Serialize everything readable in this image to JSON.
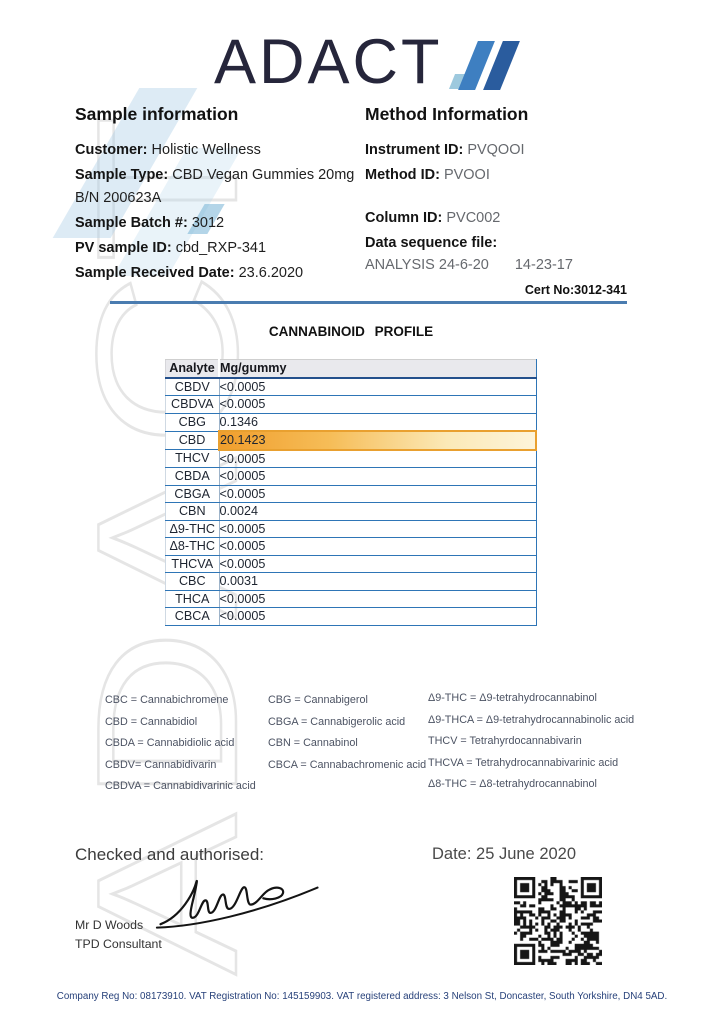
{
  "logo": {
    "text": "ADACT"
  },
  "icons": {
    "logo_mark": "adact-diagonal-bars",
    "signature": "handwritten-signature",
    "qr": "qr-code"
  },
  "sample_info": {
    "title": "Sample information",
    "fields": [
      {
        "label": "Customer:",
        "value": "Holistic Wellness"
      },
      {
        "label": "Sample Type:",
        "value": "CBD Vegan Gummies 20mg B/N 200623A"
      },
      {
        "label": "Sample Batch #:",
        "value": "3012"
      },
      {
        "label": "PV sample ID:",
        "value": "cbd_RXP-341"
      },
      {
        "label": "Sample Received Date:",
        "value": "23.6.2020"
      }
    ]
  },
  "method_info": {
    "title": "Method Information",
    "groups": [
      [
        {
          "label": "Instrument ID:",
          "value": "PVQOOI"
        },
        {
          "label": "Method ID:",
          "value": "PVOOI"
        }
      ],
      [
        {
          "label": "Column ID:",
          "value": "PVC002"
        },
        {
          "label": "Data sequence file:",
          "value": ""
        }
      ]
    ],
    "sequence_file": [
      "ANALYSIS 24-6-20",
      "14-23-17"
    ]
  },
  "certificate": {
    "cert_no": "Cert No:3012-341"
  },
  "profile": {
    "title": "CANNABINOID PROFILE",
    "columns": [
      "Analyte",
      "Mg/gummy"
    ],
    "rows": [
      {
        "analyte": "CBDV",
        "value": "<0.0005",
        "highlight": false
      },
      {
        "analyte": "CBDVA",
        "value": "<0.0005",
        "highlight": false
      },
      {
        "analyte": "CBG",
        "value": "0.1346",
        "highlight": false
      },
      {
        "analyte": "CBD",
        "value": "20.1423",
        "highlight": true
      },
      {
        "analyte": "THCV",
        "value": "<0.0005",
        "highlight": false
      },
      {
        "analyte": "CBDA",
        "value": "<0.0005",
        "highlight": false
      },
      {
        "analyte": "CBGA",
        "value": "<0.0005",
        "highlight": false
      },
      {
        "analyte": "CBN",
        "value": "0.0024",
        "highlight": false
      },
      {
        "analyte": "Δ9-THC",
        "value": "<0.0005",
        "highlight": false
      },
      {
        "analyte": "Δ8-THC",
        "value": "<0.0005",
        "highlight": false
      },
      {
        "analyte": "THCVA",
        "value": "<0.0005",
        "highlight": false
      },
      {
        "analyte": "CBC",
        "value": "0.0031",
        "highlight": false
      },
      {
        "analyte": "THCA",
        "value": "<0.0005",
        "highlight": false
      },
      {
        "analyte": "CBCA",
        "value": "<0.0005",
        "highlight": false
      }
    ]
  },
  "legend": {
    "columns": [
      [
        "CBC = Cannabichromene",
        "CBD = Cannabidiol",
        "CBDA = Cannabidiolic acid",
        "CBDV= Cannabidivarin",
        "CBDVA = Cannabidivarinic acid"
      ],
      [
        "CBG = Cannabigerol",
        "CBGA = Cannabigerolic acid",
        "CBN = Cannabinol",
        "CBCA = Cannabachromenic acid"
      ],
      [
        "Δ9-THC = Δ9-tetrahydrocannabinol",
        "Δ9-THCA = Δ9-tetrahydrocannabinolic acid",
        "THCV = Tetrahyrdocannabivarin",
        "THCVA = Tetrahydrocannabivarinic acid",
        "Δ8-THC = Δ8-tetrahydrocannabinol"
      ]
    ]
  },
  "authorisation": {
    "checked_label": "Checked and authorised:",
    "date": "Date: 25 June 2020",
    "signatory_name": "Mr D Woods",
    "signatory_role": "TPD Consultant"
  },
  "footer": {
    "text": "Company Reg No: 08173910. VAT Registration No: 145159903. VAT registered address: 3 Nelson St, Doncaster, South Yorkshire, DN4 5AD."
  },
  "watermark": {
    "text": "ADACT"
  },
  "colors": {
    "rule_blue": "#4a7cb0",
    "table_border_blue": "#2e75b6",
    "highlight_orange": "#f09e2d",
    "footer_navy": "#27417a",
    "logo_blue_light": "#9dc9de",
    "logo_blue_mid": "#3e7fc1",
    "logo_blue_dark": "#2a5c9e"
  }
}
